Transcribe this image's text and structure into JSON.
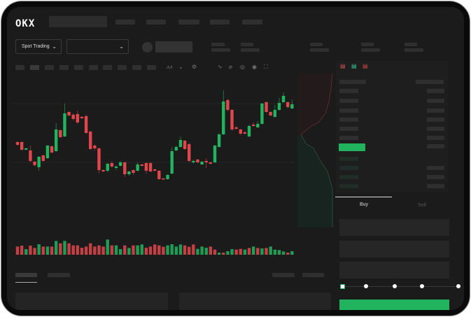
{
  "header": {
    "logo": "OKX"
  },
  "controls": {
    "market_type": "Spot Trading",
    "pair_select": ""
  },
  "toolbar": {
    "icons": [
      "indicator-icon",
      "line-type-icon",
      "settings-icon",
      "trend-icon",
      "ruler-icon",
      "camera-icon",
      "target-icon",
      "fullscreen-icon"
    ]
  },
  "orderbook": {
    "view_icons": [
      "both-sides-icon",
      "buy-side-icon",
      "sell-side-icon"
    ]
  },
  "trade": {
    "tabs": [
      "Buy",
      "Sell"
    ],
    "active_tab": "Buy",
    "leverage_steps": 5,
    "leverage_selected": 0
  },
  "colors": {
    "up": "#22b35e",
    "down": "#e0474c",
    "background": "#1b1b1b",
    "accent": "#22b35e"
  },
  "chart_data": {
    "type": "candlestick",
    "candles": [
      [
        97,
        93,
        98,
        92
      ],
      [
        97,
        86,
        98,
        85
      ],
      [
        86,
        88,
        89,
        86
      ],
      [
        85,
        70,
        92,
        68
      ],
      [
        69,
        64,
        70,
        62
      ],
      [
        61,
        76,
        77,
        56
      ],
      [
        78,
        70,
        79,
        69
      ],
      [
        74,
        92,
        93,
        73
      ],
      [
        91,
        82,
        92,
        81
      ],
      [
        84,
        115,
        124,
        83
      ],
      [
        114,
        104,
        115,
        103
      ],
      [
        105,
        138,
        152,
        104
      ],
      [
        140,
        135,
        141,
        134
      ],
      [
        136,
        130,
        138,
        128
      ],
      [
        137,
        125,
        142,
        123
      ],
      [
        133,
        131,
        134,
        130
      ],
      [
        134,
        110,
        136,
        109
      ],
      [
        112,
        87,
        113,
        86
      ],
      [
        92,
        88,
        94,
        85
      ],
      [
        88,
        57,
        89,
        52
      ],
      [
        57,
        55,
        58,
        54
      ],
      [
        56,
        66,
        67,
        54
      ],
      [
        67,
        62,
        70,
        60
      ],
      [
        60,
        62,
        64,
        57
      ],
      [
        63,
        68,
        70,
        62
      ],
      [
        68,
        51,
        69,
        47
      ],
      [
        51,
        55,
        56,
        49
      ],
      [
        57,
        53,
        58,
        50
      ],
      [
        56,
        65,
        68,
        55
      ],
      [
        65,
        63,
        66,
        62
      ],
      [
        67,
        56,
        68,
        52
      ],
      [
        67,
        55,
        68,
        54
      ],
      [
        58,
        56,
        59,
        55
      ],
      [
        56,
        44,
        57,
        43
      ],
      [
        45,
        44,
        46,
        43
      ],
      [
        44,
        50,
        51,
        43
      ],
      [
        52,
        84,
        90,
        51
      ],
      [
        85,
        90,
        92,
        84
      ],
      [
        90,
        100,
        105,
        89
      ],
      [
        99,
        87,
        100,
        86
      ],
      [
        94,
        70,
        96,
        68
      ],
      [
        68,
        70,
        72,
        66
      ],
      [
        72,
        68,
        73,
        67
      ],
      [
        65,
        69,
        70,
        64
      ],
      [
        70,
        68,
        74,
        60
      ],
      [
        68,
        66,
        69,
        65
      ],
      [
        68,
        92,
        93,
        67
      ],
      [
        90,
        108,
        110,
        89
      ],
      [
        108,
        155,
        171,
        107
      ],
      [
        157,
        143,
        159,
        141
      ],
      [
        143,
        115,
        144,
        113
      ],
      [
        118,
        116,
        120,
        115
      ],
      [
        115,
        109,
        116,
        107
      ],
      [
        111,
        109,
        113,
        108
      ],
      [
        105,
        120,
        122,
        104
      ],
      [
        122,
        120,
        125,
        119
      ],
      [
        118,
        123,
        127,
        117
      ],
      [
        123,
        152,
        153,
        122
      ],
      [
        154,
        140,
        155,
        139
      ],
      [
        140,
        135,
        141,
        134
      ],
      [
        133,
        143,
        150,
        132
      ],
      [
        143,
        153,
        160,
        142
      ],
      [
        154,
        163,
        168,
        153
      ],
      [
        154,
        147,
        155,
        145
      ],
      [
        145,
        151,
        158,
        144
      ]
    ],
    "volume": [
      35,
      39,
      24,
      39,
      29,
      45,
      35,
      35,
      35,
      59,
      49,
      59,
      49,
      40,
      40,
      30,
      35,
      49,
      35,
      40,
      35,
      65,
      40,
      40,
      24,
      40,
      29,
      40,
      40,
      44,
      30,
      35,
      44,
      40,
      34,
      40,
      45,
      35,
      44,
      40,
      34,
      44,
      25,
      35,
      30,
      35,
      22,
      9,
      9,
      15,
      24,
      22,
      25,
      22,
      29,
      35,
      29,
      27,
      29,
      35,
      22,
      20,
      14,
      9,
      15
    ],
    "volume_up": [
      0,
      0,
      1,
      0,
      0,
      1,
      0,
      1,
      0,
      1,
      0,
      1,
      0,
      0,
      0,
      0,
      0,
      0,
      0,
      0,
      0,
      1,
      0,
      1,
      1,
      0,
      1,
      0,
      1,
      1,
      0,
      0,
      0,
      0,
      0,
      1,
      1,
      1,
      1,
      0,
      0,
      0,
      1,
      1,
      1,
      0,
      0,
      1,
      0,
      1,
      1,
      0,
      0,
      1,
      0,
      1,
      0,
      1,
      0,
      1,
      1,
      1,
      1,
      0,
      1
    ]
  }
}
